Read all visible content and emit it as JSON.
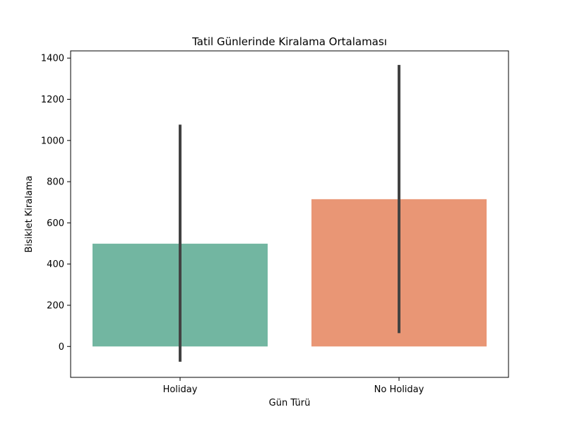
{
  "chart_data": {
    "type": "bar",
    "title": "Tatil Günlerinde Kiralama Ortalaması",
    "xlabel": "Gün Türü",
    "ylabel": "Bisiklet Kiralama",
    "categories": [
      "Holiday",
      "No Holiday"
    ],
    "values": [
      499,
      715
    ],
    "error_bars": [
      {
        "low": -74,
        "high": 1077
      },
      {
        "low": 65,
        "high": 1367
      }
    ],
    "colors": [
      "#72b6a1",
      "#e99675"
    ],
    "error_bar_color": "#424242",
    "ylim": [
      -150,
      1435
    ],
    "y_ticks": [
      0,
      200,
      400,
      600,
      800,
      1000,
      1200,
      1400
    ],
    "grid": false,
    "legend": "none"
  }
}
